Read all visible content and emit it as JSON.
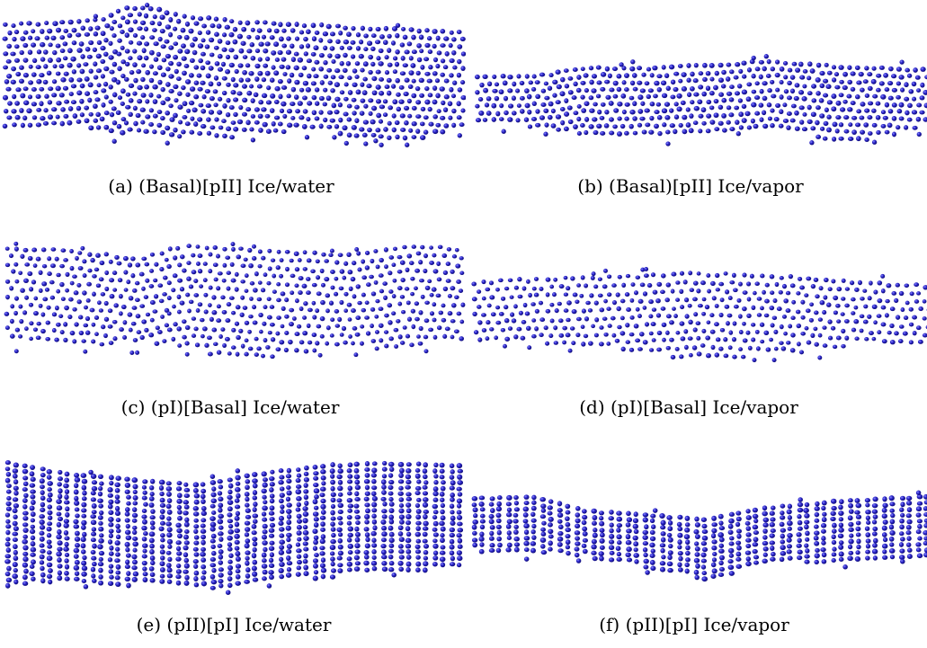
{
  "figure": {
    "atom_color": "#2a24c8",
    "atom_rim_color": "#0d0b6e",
    "atom_highlight": "#8c8cff",
    "background": "#ffffff"
  },
  "panels": [
    {
      "id": "a",
      "caption": "(a) (Basal)[pII] Ice/water",
      "interface": "Ice/water",
      "structure": "(Basal)[pII]"
    },
    {
      "id": "b",
      "caption": "(b) (Basal)[pII] Ice/vapor",
      "interface": "Ice/vapor",
      "structure": "(Basal)[pII]"
    },
    {
      "id": "c",
      "caption": "(c) (pI)[Basal] Ice/water",
      "interface": "Ice/water",
      "structure": "(pI)[Basal]"
    },
    {
      "id": "d",
      "caption": "(d) (pI)[Basal] Ice/vapor",
      "interface": "Ice/vapor",
      "structure": "(pI)[Basal]"
    },
    {
      "id": "e",
      "caption": "(e) (pII)[pI] Ice/water",
      "interface": "Ice/water",
      "structure": "(pII)[pI]"
    },
    {
      "id": "f",
      "caption": "(f) (pII)[pI] Ice/vapor",
      "interface": "Ice/vapor",
      "structure": "(pII)[pI]"
    }
  ]
}
